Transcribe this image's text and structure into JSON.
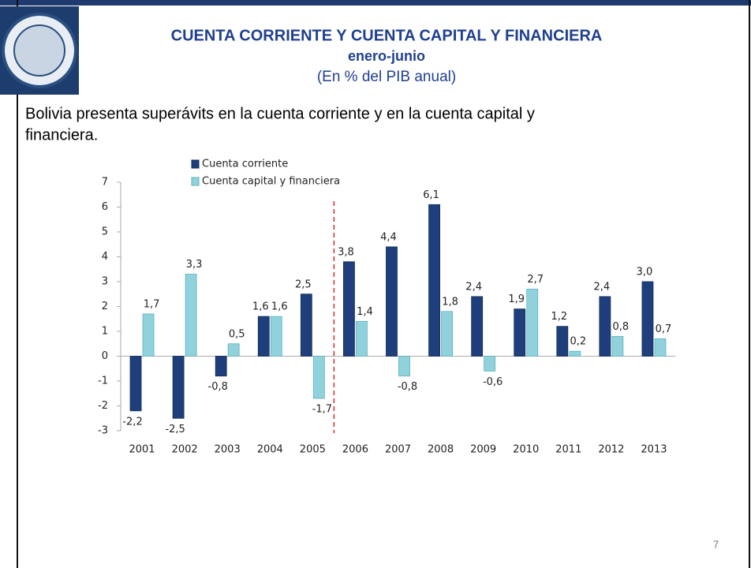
{
  "slide": {
    "title": "CUENTA CORRIENTE Y CUENTA CAPITAL Y FINANCIERA",
    "subtitle": "enero-junio",
    "unit": "(En % del PIB anual)",
    "body": [
      "Bolivia presenta superávits en la cuenta corriente y en la cuenta capital y",
      "financiera."
    ],
    "page_number": "7"
  },
  "chart_data": {
    "type": "bar",
    "categories": [
      "2001",
      "2002",
      "2003",
      "2004",
      "2005",
      "2006",
      "2007",
      "2008",
      "2009",
      "2010",
      "2011",
      "2012",
      "2013"
    ],
    "series": [
      {
        "name": "Cuenta corriente",
        "color": "#1f3f7c",
        "values": [
          -2.2,
          -2.5,
          -0.8,
          1.6,
          2.5,
          3.8,
          4.4,
          6.1,
          2.4,
          1.9,
          1.2,
          2.4,
          3.0
        ],
        "value_labels": [
          "-2,2",
          "-2,5",
          "-0,8",
          "1,6",
          "2,5",
          "3,8",
          "4,4",
          "6,1",
          "2,4",
          "1,9",
          "1,2",
          "2,4",
          "3,0"
        ]
      },
      {
        "name": "Cuenta capital y financiera",
        "color": "#8fd2dc",
        "values": [
          1.7,
          3.3,
          0.5,
          1.6,
          -1.7,
          1.4,
          -0.8,
          1.8,
          -0.6,
          2.7,
          0.2,
          0.8,
          0.7
        ],
        "value_labels": [
          "1,7",
          "3,3",
          "0,5",
          "1,6",
          "-1,7",
          "1,4",
          "-0,8",
          "1,8",
          "-0,6",
          "2,7",
          "0,2",
          "0,8",
          "0,7"
        ]
      }
    ],
    "ylim": [
      -3,
      7
    ],
    "yticks": [
      -3,
      -2,
      -1,
      0,
      1,
      2,
      3,
      4,
      5,
      6,
      7
    ],
    "legend": "top-left"
  }
}
